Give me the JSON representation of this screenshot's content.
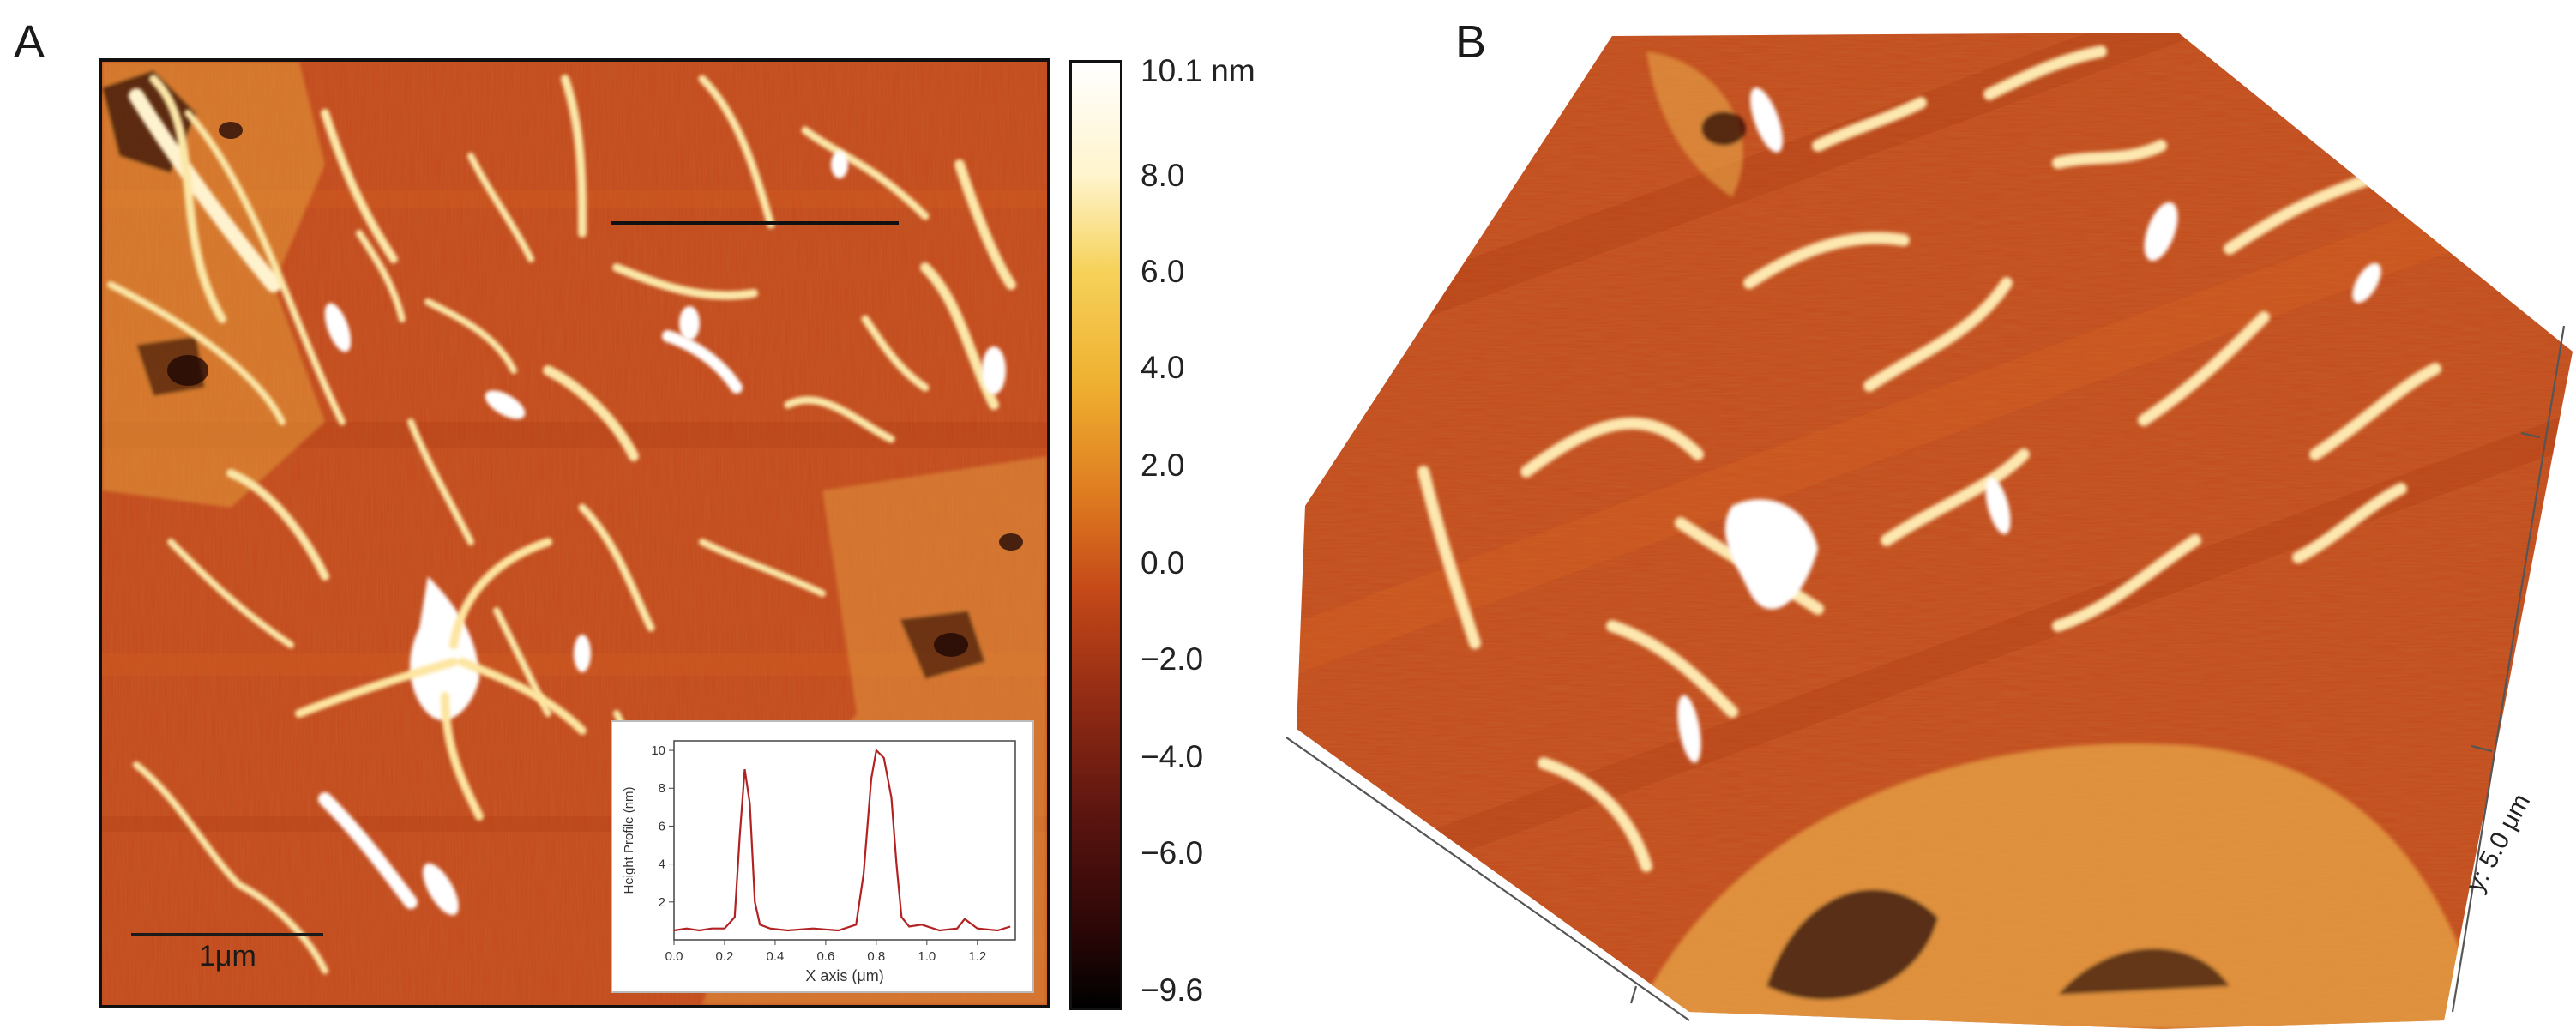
{
  "panels": {
    "a": {
      "letter": "A"
    },
    "b": {
      "letter": "B"
    }
  },
  "colorbar": {
    "top_label": "10.1 nm",
    "ticks": [
      "8.0",
      "6.0",
      "4.0",
      "2.0",
      "0.0",
      "−2.0",
      "−4.0",
      "−6.0"
    ],
    "bottom_label": "−9.6",
    "colors": {
      "high": "#ffffff",
      "mid": "#de7a20",
      "low": "#000000"
    }
  },
  "scalebar": {
    "label": "1μm"
  },
  "inset": {
    "xlabel": "X axis (μm)",
    "ylabel": "Height Profile (nm)",
    "xticks": [
      "0.0",
      "0.2",
      "0.4",
      "0.6",
      "0.8",
      "1.0",
      "1.2"
    ],
    "yticks": [
      "2",
      "4",
      "6",
      "8",
      "10"
    ],
    "line_color": "#b22222"
  },
  "view3d": {
    "y_axis_label": "y: 5.0 μm"
  },
  "chart_data": {
    "type": "line",
    "title": "",
    "xlabel": "X axis (μm)",
    "ylabel": "Height Profile (nm)",
    "xlim": [
      0.0,
      1.35
    ],
    "ylim": [
      0,
      10.5
    ],
    "series": [
      {
        "x": [
          0.0,
          0.05,
          0.1,
          0.15,
          0.2,
          0.24,
          0.26,
          0.28,
          0.3,
          0.32,
          0.34,
          0.38,
          0.45,
          0.55,
          0.65,
          0.72,
          0.75,
          0.78,
          0.8,
          0.83,
          0.86,
          0.88,
          0.9,
          0.93,
          0.98,
          1.05,
          1.12,
          1.15,
          1.2,
          1.28,
          1.33
        ],
        "y": [
          0.5,
          0.6,
          0.5,
          0.6,
          0.6,
          1.2,
          5.5,
          9.0,
          7.2,
          2.0,
          0.8,
          0.6,
          0.5,
          0.6,
          0.5,
          0.8,
          3.5,
          8.5,
          10.0,
          9.6,
          7.5,
          4.0,
          1.2,
          0.7,
          0.8,
          0.5,
          0.6,
          1.1,
          0.6,
          0.5,
          0.7
        ]
      }
    ]
  }
}
